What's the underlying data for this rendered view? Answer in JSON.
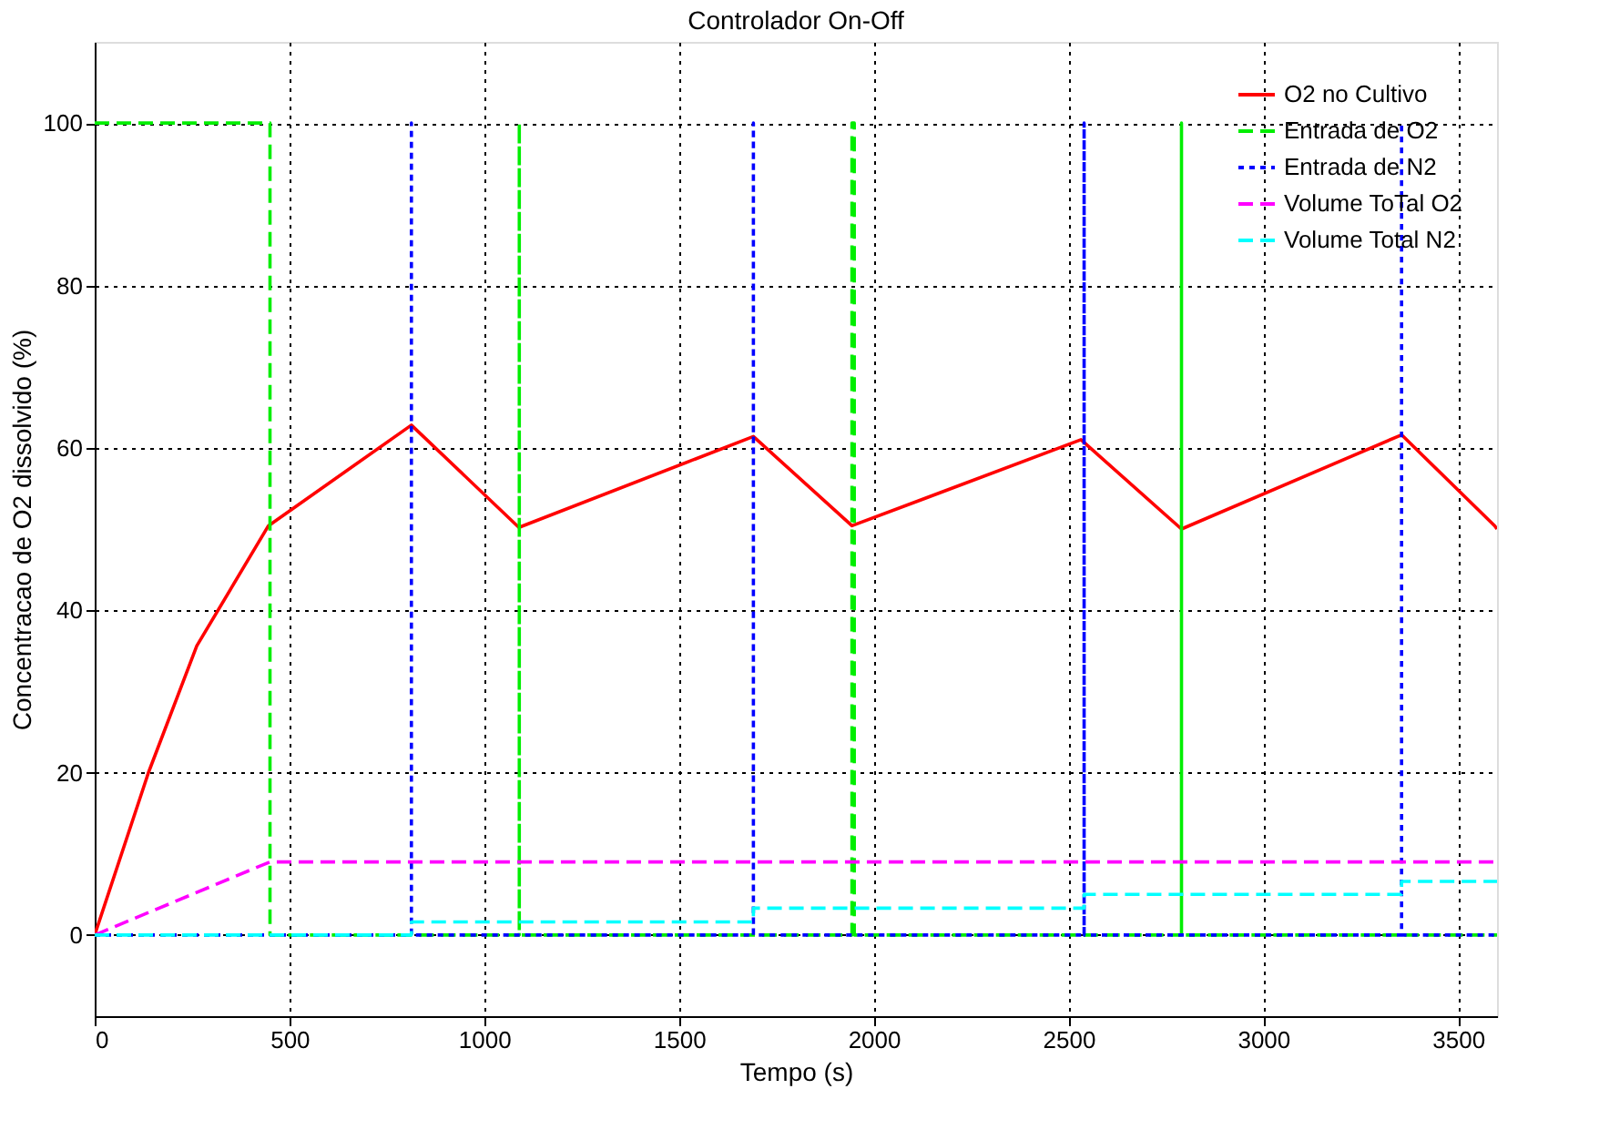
{
  "chart_data": {
    "type": "line",
    "title": "Controlador On-Off",
    "xlabel": "Tempo (s)",
    "ylabel": "Concentracao de O2 dissolvido (%)",
    "xlim": [
      0,
      3600
    ],
    "xticks": [
      0,
      500,
      1000,
      1500,
      2000,
      2500,
      3000,
      3500
    ],
    "ylim": [
      -10,
      110
    ],
    "yticks": [
      0,
      20,
      40,
      60,
      80,
      100
    ],
    "grid": true,
    "legend": "top right",
    "marker": "none",
    "series": [
      {
        "name": "O2 no Cultivo",
        "color": "#ff0000",
        "line_style": "solid",
        "x": [
          0,
          138,
          262,
          354,
          446,
          813,
          1089,
          1691,
          1944,
          2532,
          2790,
          3355,
          3594,
          3600
        ],
        "values": [
          0,
          20,
          35.6,
          43,
          50.4,
          62.8,
          50.2,
          61.4,
          50.4,
          61,
          50,
          61.6,
          50.4,
          50
        ]
      },
      {
        "name": "Entrada de O2",
        "color": "#00ee00",
        "line_style": "dashed",
        "x": [
          0,
          450,
          450,
          1090,
          1090,
          1090,
          1944,
          1944,
          1950,
          1950,
          2790,
          2790,
          2790,
          3600
        ],
        "values": [
          100,
          100,
          0,
          0,
          100,
          0,
          0,
          100,
          100,
          0,
          0,
          100,
          0,
          0
        ]
      },
      {
        "name": "Entrada de N2",
        "color": "#0000ff",
        "line_style": "dotted",
        "x": [
          0,
          813,
          813,
          813,
          1691,
          1691,
          1691,
          2540,
          2540,
          2540,
          3355,
          3355,
          3355,
          3600
        ],
        "values": [
          0,
          0,
          100,
          0,
          0,
          100,
          0,
          0,
          100,
          0,
          0,
          100,
          0,
          0
        ]
      },
      {
        "name": "Volume ToTal O2",
        "color": "#ff00ff",
        "line_style": "dashed",
        "x": [
          0,
          450,
          3600
        ],
        "values": [
          0,
          9,
          9
        ]
      },
      {
        "name": "Volume Total N2",
        "color": "#00ffff",
        "line_style": "dashed",
        "x": [
          0,
          813,
          813,
          1691,
          1691,
          2540,
          2540,
          3355,
          3355,
          3600
        ],
        "values": [
          0,
          0,
          1.6,
          1.6,
          3.3,
          3.3,
          5,
          5,
          6.6,
          6.6
        ]
      }
    ]
  }
}
